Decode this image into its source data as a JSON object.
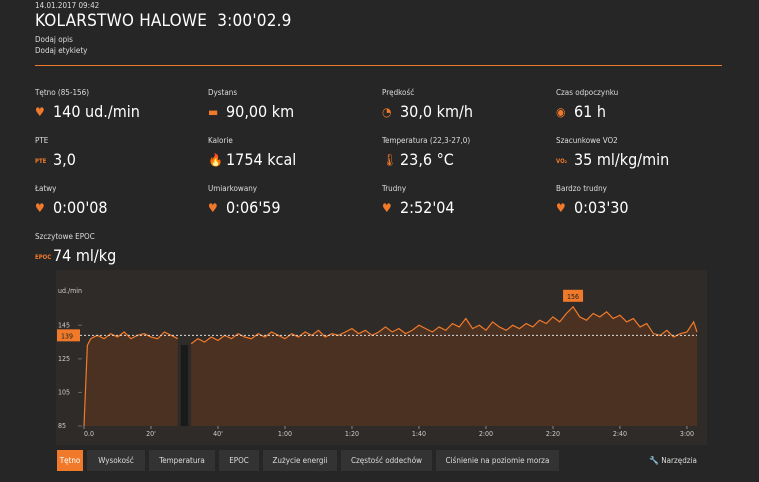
{
  "header": {
    "date": "14.01.2017 09:42",
    "title": "KOLARSTWO HALOWE",
    "duration": "3:00'02.9",
    "links": [
      "Dodaj opis",
      "Dodaj etykiety"
    ]
  },
  "stats": [
    {
      "label": "Tętno",
      "range": "(85-156)",
      "value": "140 ud./min"
    },
    {
      "label": "Dystans",
      "value": "90,00 km"
    },
    {
      "label": "Prędkość",
      "value": "30,0 km/h"
    },
    {
      "label": "Czas odpoczynku",
      "value": "61 h"
    },
    {
      "label": "PTE",
      "icon": "PTE",
      "value": "3,0"
    },
    {
      "label": "Kalorie",
      "value": "1754 kcal"
    },
    {
      "label": "Temperatura",
      "range": "(22,3-27,0)",
      "value": "23,6 °C"
    },
    {
      "label": "Szacunkowe VO2",
      "icon": "VO₂",
      "value": "35 ml/kg/min"
    },
    {
      "label": "Łatwy",
      "value": "0:00'08"
    },
    {
      "label": "Umiarkowany",
      "value": "0:06'59"
    },
    {
      "label": "Trudny",
      "value": "2:52'04"
    },
    {
      "label": "Bardzo trudny",
      "value": "0:03'30"
    },
    {
      "label": "Szczytowe EPOC",
      "icon": "EPOC",
      "value": "74 ml/kg"
    }
  ],
  "chart_data": {
    "type": "line",
    "y_label": "ud./min",
    "color": "#f07a2a",
    "average": 139,
    "max": 156,
    "x": [
      0,
      1,
      2,
      4,
      6,
      8,
      10,
      12,
      14,
      16,
      18,
      20,
      22,
      24,
      26,
      28,
      30,
      32,
      34,
      36,
      38,
      40,
      42,
      44,
      46,
      48,
      50,
      52,
      54,
      56,
      58,
      60,
      62,
      64,
      66,
      68,
      70,
      72,
      74,
      76,
      78,
      80,
      82,
      84,
      86,
      88,
      90,
      92,
      94,
      96,
      98,
      100,
      102,
      104,
      106,
      108,
      110,
      112,
      114,
      116,
      118,
      120,
      122,
      124,
      126,
      128,
      130,
      132,
      134,
      136,
      138,
      140,
      142,
      144,
      146,
      148,
      150,
      152,
      154,
      156,
      158,
      160,
      162,
      164,
      166,
      168,
      170,
      172,
      174,
      176,
      178,
      180,
      182,
      183
    ],
    "values": [
      85,
      133,
      137,
      139,
      137,
      140,
      138,
      141,
      137,
      139,
      140,
      138,
      137,
      141,
      139,
      137,
      null,
      134,
      137,
      135,
      138,
      136,
      139,
      137,
      140,
      138,
      137,
      140,
      138,
      141,
      139,
      137,
      140,
      138,
      141,
      139,
      142,
      138,
      140,
      139,
      141,
      143,
      140,
      142,
      139,
      141,
      144,
      141,
      143,
      140,
      142,
      145,
      143,
      141,
      144,
      142,
      146,
      144,
      149,
      143,
      145,
      142,
      147,
      144,
      142,
      145,
      143,
      146,
      144,
      148,
      146,
      150,
      147,
      152,
      156,
      150,
      148,
      152,
      150,
      153,
      149,
      151,
      147,
      149,
      144,
      146,
      140,
      139,
      142,
      138,
      140,
      141,
      147,
      141
    ],
    "xlim": [
      0,
      183
    ],
    "ylim": [
      85,
      166
    ],
    "xticks": [
      {
        "value": 0,
        "label": "0.0"
      },
      {
        "value": 20,
        "label": "20'"
      },
      {
        "value": 40,
        "label": "40'"
      },
      {
        "value": 60,
        "label": "1:00"
      },
      {
        "value": 80,
        "label": "1:20"
      },
      {
        "value": 100,
        "label": "1:40"
      },
      {
        "value": 120,
        "label": "2:00"
      },
      {
        "value": 140,
        "label": "2:20"
      },
      {
        "value": 160,
        "label": "2:40"
      },
      {
        "value": 180,
        "label": "3:00"
      }
    ],
    "yticks": [
      85,
      105,
      125,
      145
    ]
  },
  "tabs": [
    "Tętno",
    "Wysokość",
    "Temperatura",
    "EPOC",
    "Zużycie energii",
    "Częstość oddechów",
    "Ciśnienie na poziomie morza"
  ],
  "tools": "Narzędzia"
}
